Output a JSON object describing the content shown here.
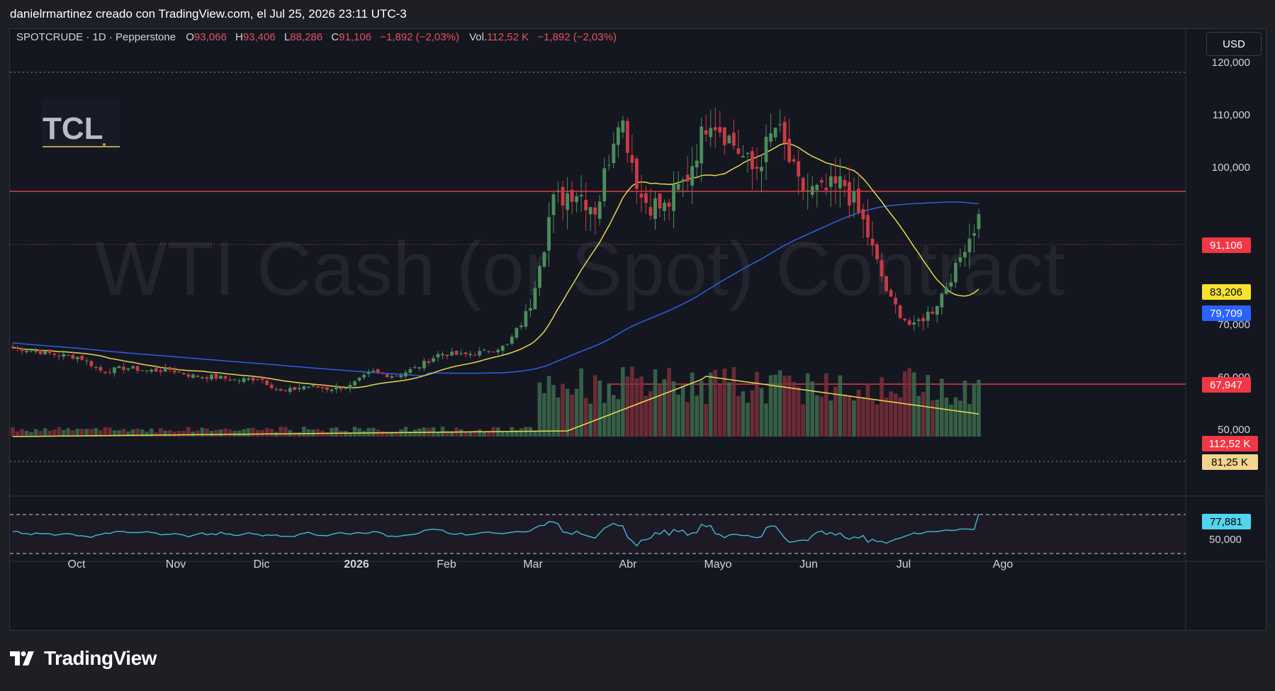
{
  "header": {
    "credit": "danielrmartinez creado con TradingView.com, el Jul 25, 2026 23:11 UTC-3"
  },
  "currency_button": "USD",
  "footer": {
    "brand": "TradingView"
  },
  "watermark": "WTI Cash (or Spot) Contract",
  "logo": {
    "text": "TCL"
  },
  "legend": {
    "symbol": "SPOTCRUDE · 1D · Pepperstone",
    "o_label": "O",
    "o_value": "93,066",
    "h_label": "H",
    "h_value": "93,406",
    "l_label": "L",
    "l_value": "88,286",
    "c_label": "C",
    "c_value": "91,106",
    "change": "−1,892 (−2,03%)",
    "vol_label": "Vol.",
    "vol_value": "112,52 K",
    "vol_change": "−1,892 (−2,03%)"
  },
  "colors": {
    "up": "#4c8c5c",
    "down": "#c93a45",
    "ma_fast": "#e5d84a",
    "ma_slow": "#2f5ee0",
    "rsi": "#3fb9d9",
    "level": "#e53a45",
    "bg": "#141720"
  },
  "chart_data": {
    "type": "candlestick",
    "symbol": "SPOTCRUDE",
    "timeframe": "1D",
    "y_axis": {
      "ticks": [
        50,
        60,
        70,
        100,
        110,
        120
      ],
      "tick_labels": [
        "50,000",
        "60,000",
        "70,000",
        "100,000",
        "110,000",
        "120,000"
      ],
      "ylim": [
        48,
        124
      ]
    },
    "x_axis": {
      "labels": [
        "Oct",
        "Nov",
        "Dic",
        "2026",
        "Feb",
        "Mar",
        "Abr",
        "Mayo",
        "Jun",
        "Jul",
        "Ago"
      ]
    },
    "price_series": [
      {
        "t": "Sep-25",
        "c": 65.6
      },
      {
        "t": "Oct-1",
        "c": 65.0
      },
      {
        "t": "Oct-8",
        "c": 64.2
      },
      {
        "t": "Oct-15",
        "c": 63.8
      },
      {
        "t": "Oct-22",
        "c": 61.0
      },
      {
        "t": "Oct-29",
        "c": 61.8
      },
      {
        "t": "Nov-5",
        "c": 61.2
      },
      {
        "t": "Nov-12",
        "c": 61.4
      },
      {
        "t": "Nov-19",
        "c": 60.2
      },
      {
        "t": "Nov-26",
        "c": 60.0
      },
      {
        "t": "Dic-3",
        "c": 59.4
      },
      {
        "t": "Dic-10",
        "c": 59.8
      },
      {
        "t": "Dic-17",
        "c": 57.0
      },
      {
        "t": "Dic-24",
        "c": 58.3
      },
      {
        "t": "Dic-31",
        "c": 57.8
      },
      {
        "t": "Ene-7",
        "c": 58.2
      },
      {
        "t": "Ene-14",
        "c": 61.0
      },
      {
        "t": "Ene-21",
        "c": 60.2
      },
      {
        "t": "Ene-28",
        "c": 61.8
      },
      {
        "t": "Feb-4",
        "c": 64.5
      },
      {
        "t": "Feb-11",
        "c": 64.2
      },
      {
        "t": "Feb-18",
        "c": 64.8
      },
      {
        "t": "Feb-25",
        "c": 66.0
      },
      {
        "t": "Mar-4",
        "c": 73.0
      },
      {
        "t": "Mar-11",
        "c": 93.0
      },
      {
        "t": "Mar-18",
        "c": 96.0
      },
      {
        "t": "Mar-25",
        "c": 92.0
      },
      {
        "t": "Abr-1",
        "c": 111.0
      },
      {
        "t": "Abr-8",
        "c": 94.0
      },
      {
        "t": "Abr-15",
        "c": 92.0
      },
      {
        "t": "Abr-22",
        "c": 98.0
      },
      {
        "t": "Abr-29",
        "c": 110.0
      },
      {
        "t": "May-6",
        "c": 105.0
      },
      {
        "t": "May-13",
        "c": 99.0
      },
      {
        "t": "May-20",
        "c": 108.0
      },
      {
        "t": "May-27",
        "c": 96.0
      },
      {
        "t": "Jun-3",
        "c": 95.0
      },
      {
        "t": "Jun-10",
        "c": 97.0
      },
      {
        "t": "Jun-17",
        "c": 88.0
      },
      {
        "t": "Jun-24",
        "c": 75.0
      },
      {
        "t": "Jul-1",
        "c": 69.5
      },
      {
        "t": "Jul-8",
        "c": 73.0
      },
      {
        "t": "Jul-15",
        "c": 81.0
      },
      {
        "t": "Jul-22",
        "c": 91.1
      }
    ],
    "ma_fast": {
      "last": 83.206
    },
    "ma_slow": {
      "last": 79.709
    },
    "levels": [
      100.0,
      67.947
    ],
    "volume_ma": {
      "last": "81,25 K"
    },
    "rsi": {
      "last": 77.881,
      "axis_label": "50,000"
    },
    "price_labels": {
      "last": "91,106",
      "ma_fast": "83,206",
      "ma_slow": "79,709",
      "support": "67,947",
      "volume": "112,52 K",
      "volume_ma": "81,25 K",
      "rsi": "77,881"
    }
  }
}
